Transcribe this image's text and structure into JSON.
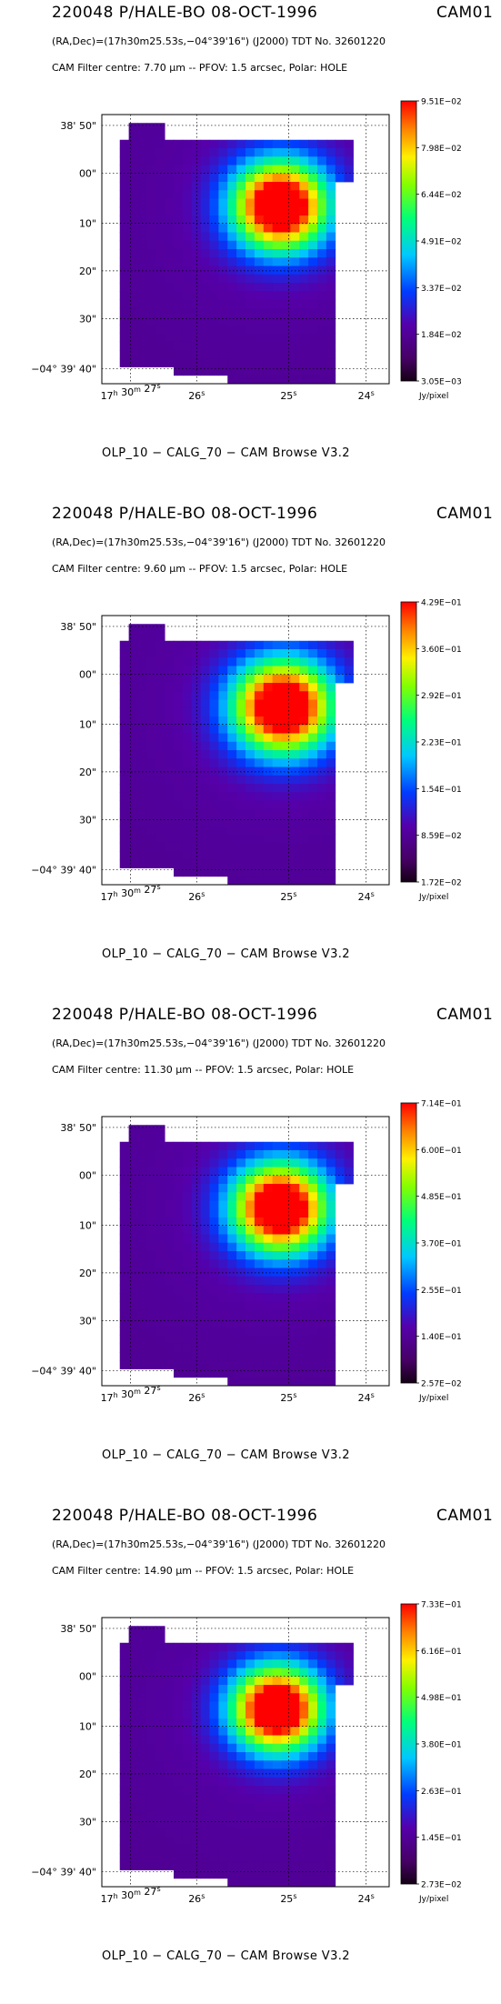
{
  "panels": [
    {
      "title": "220048 P/HALE-BO 08-OCT-1996",
      "cam_id": "CAM01",
      "coords": "(RA,Dec)=(17h30m25.53s,−04°39'16\") (J2000) TDT No. 32601220",
      "filter": "CAM  Filter  centre:  7.70 μm --   PFOV:  1.5 arcsec, Polar: HOLE",
      "footer": "OLP_10    − CALG_70   − CAM Browse V3.2"
    },
    {
      "title": "220048 P/HALE-BO 08-OCT-1996",
      "cam_id": "CAM01",
      "coords": "(RA,Dec)=(17h30m25.53s,−04°39'16\") (J2000) TDT No. 32601220",
      "filter": "CAM  Filter  centre:  9.60 μm --   PFOV:  1.5 arcsec, Polar: HOLE",
      "footer": "OLP_10    − CALG_70   − CAM Browse V3.2"
    },
    {
      "title": "220048 P/HALE-BO 08-OCT-1996",
      "cam_id": "CAM01",
      "coords": "(RA,Dec)=(17h30m25.53s,−04°39'16\") (J2000) TDT No. 32601220",
      "filter": "CAM  Filter  centre: 11.30 μm --   PFOV:  1.5 arcsec, Polar: HOLE",
      "footer": "OLP_10    − CALG_70   − CAM Browse V3.2"
    },
    {
      "title": "220048 P/HALE-BO 08-OCT-1996",
      "cam_id": "CAM01",
      "coords": "(RA,Dec)=(17h30m25.53s,−04°39'16\") (J2000) TDT No. 32601220",
      "filter": "CAM  Filter  centre: 14.90 μm --   PFOV:  1.5 arcsec, Polar: HOLE",
      "footer": "OLP_10    − CALG_70   − CAM Browse V3.2"
    }
  ],
  "chart_data": [
    {
      "type": "heatmap",
      "x_ticks": [
        {
          "h": "17",
          "m": "30",
          "s": "27"
        },
        {
          "s": "26"
        },
        {
          "s": "25"
        },
        {
          "s": "24"
        }
      ],
      "y_ticks": [
        "38' 50\"",
        "00\"",
        "10\"",
        "20\"",
        "30\"",
        "−04° 39' 40\""
      ],
      "colorbar_ticks": [
        "9.51E−02",
        "7.98E−02",
        "6.44E−02",
        "4.91E−02",
        "3.37E−02",
        "1.84E−02",
        "3.05E−03"
      ],
      "colorbar_unit": "Jy/pixel",
      "peak_offset": [
        0.62,
        0.34
      ],
      "peak_spread": 0.115,
      "grid": true
    },
    {
      "type": "heatmap",
      "x_ticks": [
        {
          "h": "17",
          "m": "30",
          "s": "27"
        },
        {
          "s": "26"
        },
        {
          "s": "25"
        },
        {
          "s": "24"
        }
      ],
      "y_ticks": [
        "38' 50\"",
        "00\"",
        "10\"",
        "20\"",
        "30\"",
        "−04° 39' 40\""
      ],
      "colorbar_ticks": [
        "4.29E−01",
        "3.60E−01",
        "2.92E−01",
        "2.23E−01",
        "1.54E−01",
        "8.59E−02",
        "1.72E−02"
      ],
      "colorbar_unit": "Jy/pixel",
      "peak_offset": [
        0.63,
        0.34
      ],
      "peak_spread": 0.12,
      "grid": true
    },
    {
      "type": "heatmap",
      "x_ticks": [
        {
          "h": "17",
          "m": "30",
          "s": "27"
        },
        {
          "s": "26"
        },
        {
          "s": "25"
        },
        {
          "s": "24"
        }
      ],
      "y_ticks": [
        "38' 50\"",
        "00\"",
        "10\"",
        "20\"",
        "30\"",
        "−04° 39' 40\""
      ],
      "colorbar_ticks": [
        "7.14E−01",
        "6.00E−01",
        "4.85E−01",
        "3.70E−01",
        "2.55E−01",
        "1.40E−01",
        "2.57E−02"
      ],
      "colorbar_unit": "Jy/pixel",
      "peak_offset": [
        0.62,
        0.34
      ],
      "peak_spread": 0.115,
      "grid": true
    },
    {
      "type": "heatmap",
      "x_ticks": [
        {
          "h": "17",
          "m": "30",
          "s": "27"
        },
        {
          "s": "26"
        },
        {
          "s": "25"
        },
        {
          "s": "24"
        }
      ],
      "y_ticks": [
        "38' 50\"",
        "00\"",
        "10\"",
        "20\"",
        "30\"",
        "−04° 39' 40\""
      ],
      "colorbar_ticks": [
        "7.33E−01",
        "6.16E−01",
        "4.98E−01",
        "3.80E−01",
        "2.63E−01",
        "1.45E−01",
        "2.73E−02"
      ],
      "colorbar_unit": "Jy/pixel",
      "peak_offset": [
        0.61,
        0.34
      ],
      "peak_spread": 0.11,
      "grid": true
    }
  ]
}
